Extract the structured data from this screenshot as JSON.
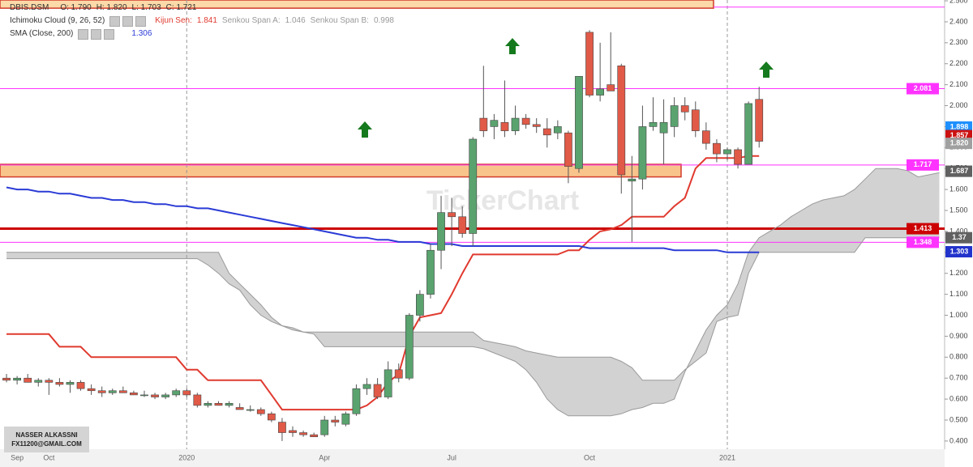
{
  "chart_data": {
    "type": "candlestick",
    "categories": [
      null,
      "Sep",
      null,
      null,
      "Oct",
      null,
      null,
      null,
      null,
      null,
      null,
      null,
      null,
      null,
      null,
      null,
      null,
      "2020",
      null,
      null,
      null,
      null,
      null,
      null,
      null,
      null,
      null,
      null,
      null,
      null,
      "Apr",
      null,
      null,
      null,
      null,
      null,
      null,
      null,
      null,
      null,
      null,
      null,
      "Jul",
      null,
      null,
      null,
      null,
      null,
      null,
      null,
      null,
      null,
      null,
      null,
      null,
      "Oct",
      null,
      null,
      null,
      null,
      null,
      null,
      null,
      null,
      null,
      null,
      null,
      null,
      "2021",
      null,
      null,
      null,
      null,
      null,
      null,
      null,
      null,
      null,
      null,
      null,
      null,
      null,
      null,
      null,
      null,
      null,
      null,
      null,
      null
    ],
    "ohlc": {
      "name": "DBIS.DSM",
      "legend_values": [
        "O: 1.790",
        "H: 1.820",
        "L: 1.703",
        "C: 1.721"
      ],
      "up_color": "#5aa36f",
      "down_color": "#e05a47",
      "open": [
        0.7,
        0.69,
        0.7,
        0.68,
        0.69,
        0.68,
        0.67,
        0.68,
        0.65,
        0.64,
        0.63,
        0.64,
        0.63,
        0.62,
        0.62,
        0.61,
        0.62,
        0.64,
        0.62,
        0.57,
        0.58,
        0.57,
        0.56,
        0.55,
        0.55,
        0.53,
        0.49,
        0.45,
        0.44,
        0.43,
        0.43,
        0.5,
        0.48,
        0.53,
        0.65,
        0.67,
        0.61,
        0.74,
        0.7,
        1.0,
        1.1,
        1.31,
        1.49,
        1.47,
        1.39,
        1.94,
        1.9,
        1.92,
        1.88,
        1.94,
        1.91,
        1.89,
        1.87,
        1.87,
        1.7,
        2.35,
        2.05,
        2.1,
        2.19,
        1.64,
        1.65,
        1.9,
        1.87,
        1.9,
        2.0,
        1.98,
        1.88,
        1.82,
        1.77,
        1.79,
        1.72,
        2.03,
        null,
        null,
        null,
        null,
        null,
        null,
        null,
        null,
        null,
        null,
        null,
        null,
        null,
        null,
        null,
        null,
        null
      ],
      "high": [
        0.72,
        0.71,
        0.72,
        0.7,
        0.7,
        0.7,
        0.69,
        0.69,
        0.67,
        0.66,
        0.65,
        0.66,
        0.64,
        0.64,
        0.63,
        0.63,
        0.65,
        0.65,
        0.63,
        0.59,
        0.59,
        0.59,
        0.58,
        0.57,
        0.56,
        0.54,
        0.51,
        0.47,
        0.45,
        0.44,
        0.52,
        0.52,
        0.54,
        0.67,
        0.7,
        0.7,
        0.78,
        0.77,
        1.01,
        1.12,
        1.34,
        1.57,
        1.56,
        1.52,
        1.85,
        2.19,
        1.96,
        2.12,
        2.0,
        1.96,
        1.94,
        1.94,
        1.93,
        1.88,
        2.14,
        2.36,
        2.3,
        2.35,
        2.2,
        1.76,
        2.0,
        2.04,
        2.03,
        2.04,
        2.04,
        2.02,
        1.92,
        1.84,
        1.8,
        1.8,
        2.02,
        2.09,
        null,
        null,
        null,
        null,
        null,
        null,
        null,
        null,
        null,
        null,
        null,
        null,
        null,
        null,
        null,
        null,
        null
      ],
      "low": [
        0.68,
        0.67,
        0.68,
        0.66,
        0.62,
        0.66,
        0.63,
        0.64,
        0.62,
        0.61,
        0.62,
        0.63,
        0.62,
        0.61,
        0.6,
        0.6,
        0.61,
        0.61,
        0.56,
        0.56,
        0.57,
        0.56,
        0.55,
        0.54,
        0.52,
        0.49,
        0.4,
        0.42,
        0.42,
        0.42,
        0.42,
        0.47,
        0.47,
        0.52,
        0.62,
        0.6,
        0.6,
        0.68,
        0.69,
        0.97,
        1.08,
        1.22,
        1.33,
        1.37,
        1.33,
        1.85,
        1.84,
        1.85,
        1.86,
        1.89,
        1.87,
        1.8,
        1.84,
        1.63,
        1.68,
        2.04,
        2.02,
        2.07,
        1.58,
        1.35,
        1.6,
        1.88,
        1.72,
        1.85,
        1.93,
        1.85,
        1.79,
        1.73,
        1.74,
        1.7,
        1.72,
        1.8,
        null,
        null,
        null,
        null,
        null,
        null,
        null,
        null,
        null,
        null,
        null,
        null,
        null,
        null,
        null,
        null,
        null
      ],
      "close": [
        0.69,
        0.7,
        0.68,
        0.69,
        0.68,
        0.67,
        0.68,
        0.65,
        0.64,
        0.63,
        0.64,
        0.63,
        0.62,
        0.62,
        0.61,
        0.62,
        0.64,
        0.62,
        0.57,
        0.58,
        0.57,
        0.58,
        0.55,
        0.55,
        0.53,
        0.5,
        0.44,
        0.44,
        0.43,
        0.42,
        0.5,
        0.49,
        0.53,
        0.65,
        0.67,
        0.61,
        0.74,
        0.7,
        1.0,
        1.1,
        1.31,
        1.49,
        1.47,
        1.39,
        1.84,
        1.88,
        1.93,
        1.88,
        1.94,
        1.91,
        1.9,
        1.86,
        1.9,
        1.71,
        2.14,
        2.05,
        2.08,
        2.07,
        1.67,
        1.65,
        1.9,
        1.92,
        1.92,
        2.0,
        1.97,
        1.88,
        1.82,
        1.77,
        1.79,
        1.72,
        2.01,
        1.83,
        null,
        null,
        null,
        null,
        null,
        null,
        null,
        null,
        null,
        null,
        null,
        null,
        null,
        null,
        null,
        null,
        null
      ]
    },
    "indicator_title": "Ichimoku Cloud (9, 26, 52)",
    "cloud_fill": "#d2d2d2",
    "series": [
      {
        "name": "Kijun Sen:",
        "legend_value": "1.841",
        "color": "#e03a2f",
        "width": 2,
        "values": [
          0.91,
          0.91,
          0.91,
          0.91,
          0.91,
          0.85,
          0.85,
          0.85,
          0.8,
          0.8,
          0.8,
          0.8,
          0.8,
          0.8,
          0.8,
          0.8,
          0.8,
          0.74,
          0.74,
          0.69,
          0.69,
          0.69,
          0.69,
          0.69,
          0.69,
          0.62,
          0.55,
          0.55,
          0.55,
          0.55,
          0.55,
          0.55,
          0.55,
          0.55,
          0.57,
          0.61,
          0.68,
          0.72,
          0.9,
          0.99,
          1.0,
          1.01,
          1.1,
          1.2,
          1.29,
          1.29,
          1.29,
          1.29,
          1.29,
          1.29,
          1.29,
          1.29,
          1.29,
          1.31,
          1.31,
          1.36,
          1.4,
          1.41,
          1.43,
          1.47,
          1.47,
          1.47,
          1.47,
          1.52,
          1.56,
          1.7,
          1.75,
          1.75,
          1.75,
          1.75,
          1.76,
          1.76,
          null,
          null,
          null,
          null,
          null,
          null,
          null,
          null,
          null,
          null,
          null,
          null,
          null,
          null,
          null,
          null,
          null
        ]
      },
      {
        "name": "Senkou Span A:",
        "legend_value": "1.046",
        "color": "#999999",
        "width": 1,
        "cloud": true,
        "values": [
          1.27,
          1.27,
          1.27,
          1.27,
          1.27,
          1.27,
          1.27,
          1.27,
          1.27,
          1.27,
          1.27,
          1.27,
          1.27,
          1.27,
          1.27,
          1.27,
          1.27,
          1.27,
          1.27,
          1.24,
          1.2,
          1.15,
          1.12,
          1.05,
          1.0,
          0.97,
          0.95,
          0.93,
          0.92,
          0.91,
          0.85,
          0.85,
          0.85,
          0.85,
          0.85,
          0.85,
          0.85,
          0.85,
          0.85,
          0.85,
          0.85,
          0.85,
          0.85,
          0.85,
          0.85,
          0.84,
          0.82,
          0.8,
          0.78,
          0.74,
          0.68,
          0.6,
          0.55,
          0.52,
          0.52,
          0.52,
          0.52,
          0.52,
          0.53,
          0.55,
          0.56,
          0.58,
          0.58,
          0.6,
          0.73,
          0.83,
          0.93,
          1.0,
          1.05,
          1.15,
          1.3,
          1.37,
          1.4,
          1.43,
          1.47,
          1.5,
          1.53,
          1.55,
          1.56,
          1.57,
          1.6,
          1.65,
          1.7,
          1.7,
          1.7,
          1.69,
          1.66,
          1.67,
          1.68
        ]
      },
      {
        "name": "Senkou Span B:",
        "legend_value": "0.998",
        "color": "#999999",
        "width": 1,
        "cloud": true,
        "values": [
          1.3,
          1.3,
          1.3,
          1.3,
          1.3,
          1.3,
          1.3,
          1.3,
          1.3,
          1.3,
          1.3,
          1.3,
          1.3,
          1.3,
          1.3,
          1.3,
          1.3,
          1.3,
          1.3,
          1.3,
          1.3,
          1.2,
          1.15,
          1.1,
          1.05,
          0.99,
          0.95,
          0.94,
          0.92,
          0.92,
          0.92,
          0.92,
          0.92,
          0.92,
          0.92,
          0.92,
          0.92,
          0.92,
          0.92,
          0.92,
          0.92,
          0.92,
          0.92,
          0.92,
          0.92,
          0.88,
          0.87,
          0.86,
          0.85,
          0.83,
          0.82,
          0.81,
          0.8,
          0.8,
          0.8,
          0.8,
          0.8,
          0.8,
          0.78,
          0.75,
          0.69,
          0.69,
          0.69,
          0.69,
          0.74,
          0.78,
          0.82,
          0.97,
          0.99,
          1.0,
          1.2,
          1.3,
          1.3,
          1.3,
          1.3,
          1.3,
          1.3,
          1.3,
          1.3,
          1.3,
          1.3,
          1.37,
          1.37,
          1.37,
          1.37,
          1.37,
          1.37,
          1.37,
          1.37
        ]
      },
      {
        "name": "SMA (Close, 200)",
        "legend_value": "1.306",
        "color": "#2a3bd6",
        "width": 2,
        "values": [
          1.61,
          1.6,
          1.6,
          1.59,
          1.59,
          1.58,
          1.58,
          1.57,
          1.56,
          1.56,
          1.55,
          1.55,
          1.54,
          1.54,
          1.53,
          1.53,
          1.52,
          1.52,
          1.51,
          1.51,
          1.5,
          1.49,
          1.48,
          1.47,
          1.46,
          1.45,
          1.44,
          1.43,
          1.42,
          1.41,
          1.4,
          1.39,
          1.38,
          1.37,
          1.37,
          1.36,
          1.36,
          1.35,
          1.35,
          1.35,
          1.34,
          1.34,
          1.34,
          1.33,
          1.33,
          1.33,
          1.33,
          1.33,
          1.33,
          1.33,
          1.33,
          1.33,
          1.33,
          1.33,
          1.33,
          1.32,
          1.32,
          1.32,
          1.32,
          1.32,
          1.32,
          1.32,
          1.32,
          1.31,
          1.31,
          1.31,
          1.31,
          1.31,
          1.3,
          1.3,
          1.3,
          1.3,
          null,
          null,
          null,
          null,
          null,
          null,
          null,
          null,
          null,
          null,
          null,
          null,
          null,
          null,
          null,
          null,
          null
        ]
      }
    ],
    "zones": [
      {
        "from": 2.465,
        "to": 2.504,
        "color": "#fbd9a8"
      },
      {
        "from": 1.66,
        "to": 1.72,
        "color": "#f8c48c"
      }
    ],
    "hlines": [
      {
        "value": 2.47,
        "color": "#ff33ff",
        "width": 1
      },
      {
        "value": 2.081,
        "color": "#ff33ff",
        "width": 1
      },
      {
        "value": 1.717,
        "color": "#ff33ff",
        "width": 1
      },
      {
        "value": 1.348,
        "color": "#ff33ff",
        "width": 1
      },
      {
        "value": 1.413,
        "color": "#cc0000",
        "width": 3
      }
    ],
    "price_labels": [
      {
        "value": 2.081,
        "label": "2.081",
        "color": "#ff33ff"
      },
      {
        "value": 1.898,
        "label": "1.898",
        "color": "#1e90ff"
      },
      {
        "value": 1.857,
        "label": "1.857",
        "color": "#cc1111"
      },
      {
        "value": 1.82,
        "label": "1.820",
        "color": "#a0a0a0"
      },
      {
        "value": 1.717,
        "label": "1.717",
        "color": "#ff33ff"
      },
      {
        "value": 1.687,
        "label": "1.687",
        "color": "#a0a0a0"
      },
      {
        "value": 1.687,
        "label": "1.687",
        "color": "#606060"
      },
      {
        "value": 1.413,
        "label": "1.413",
        "color": "#cc0000"
      },
      {
        "value": 1.348,
        "label": "1.348",
        "color": "#ff33ff"
      },
      {
        "value": 1.37,
        "label": "1.37",
        "color": "#606060"
      },
      {
        "value": 1.303,
        "label": "1.303",
        "color": "#2233cc"
      }
    ],
    "watermark": "TickerChart",
    "ylim": [
      0.361,
      2.504
    ],
    "yticks": [
      {
        "value": 0.4,
        "label": "0.400"
      },
      {
        "value": 0.5,
        "label": "0.500"
      },
      {
        "value": 0.6,
        "label": "0.600"
      },
      {
        "value": 0.7,
        "label": "0.700"
      },
      {
        "value": 0.8,
        "label": "0.800"
      },
      {
        "value": 0.9,
        "label": "0.900"
      },
      {
        "value": 1.0,
        "label": "1.000"
      },
      {
        "value": 1.1,
        "label": "1.100"
      },
      {
        "value": 1.2,
        "label": "1.200"
      },
      {
        "value": 1.3,
        "label": "1.300"
      },
      {
        "value": 1.4,
        "label": "1.400"
      },
      {
        "value": 1.5,
        "label": "1.500"
      },
      {
        "value": 1.6,
        "label": "1.600"
      },
      {
        "value": 1.7,
        "label": "1.700"
      },
      {
        "value": 1.8,
        "label": "1.800"
      },
      {
        "value": 1.9,
        "label": "1.900"
      },
      {
        "value": 2.0,
        "label": "2.000"
      },
      {
        "value": 2.1,
        "label": "2.100"
      },
      {
        "value": 2.2,
        "label": "2.200"
      },
      {
        "value": 2.3,
        "label": "2.300"
      },
      {
        "value": 2.4,
        "label": "2.400"
      },
      {
        "value": 2.5,
        "label": "2.500"
      }
    ],
    "grid": false
  },
  "credit": {
    "lines": [
      "NASSER ALKASSNI",
      "FX11200@GMAIL.COM"
    ]
  }
}
